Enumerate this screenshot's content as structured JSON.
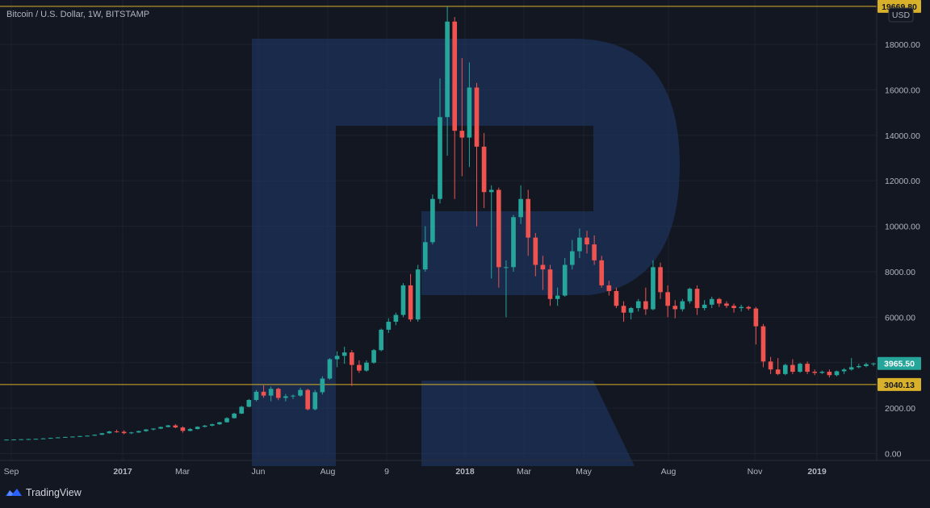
{
  "title": "Bitcoin / U.S. Dollar, 1W, BITSTAMP",
  "currency": "USD",
  "brand": "TradingView",
  "colors": {
    "up": "#26a69a",
    "down": "#ef5350",
    "line": "#d9b02a",
    "bg": "#131722",
    "text": "#b2b5be"
  },
  "chart_data": {
    "type": "candlestick",
    "title": "Bitcoin / U.S. Dollar, 1W, BITSTAMP",
    "y_ticks": [
      0,
      2000,
      4000,
      6000,
      8000,
      10000,
      12000,
      14000,
      16000,
      18000
    ],
    "y_tick_labels": [
      "0.00",
      "2000.00",
      "4000.00",
      "6000.00",
      "8000.00",
      "10000.00",
      "12000.00",
      "14000.00",
      "16000.00",
      "18000.00"
    ],
    "x_tick_labels": [
      "Sep",
      "2017",
      "Mar",
      "Jun",
      "Aug",
      "9",
      "2018",
      "Mar",
      "May",
      "Aug",
      "Nov",
      "2019"
    ],
    "ylim": [
      -300,
      19950
    ],
    "horizontal_levels": [
      {
        "value": 19669.8,
        "label": "19669.80"
      },
      {
        "value": 3040.13,
        "label": "3040.13"
      }
    ],
    "last_price": {
      "value": 3965.5,
      "label": "3965.50"
    },
    "grid": true,
    "candles": [
      [
        610,
        620,
        600,
        615
      ],
      [
        615,
        630,
        605,
        622
      ],
      [
        622,
        640,
        615,
        632
      ],
      [
        632,
        650,
        625,
        640
      ],
      [
        640,
        660,
        630,
        650
      ],
      [
        650,
        680,
        640,
        668
      ],
      [
        668,
        700,
        655,
        690
      ],
      [
        690,
        720,
        680,
        712
      ],
      [
        712,
        740,
        700,
        733
      ],
      [
        733,
        760,
        720,
        748
      ],
      [
        748,
        780,
        735,
        770
      ],
      [
        770,
        800,
        755,
        790
      ],
      [
        790,
        840,
        780,
        830
      ],
      [
        830,
        910,
        815,
        895
      ],
      [
        895,
        1000,
        880,
        975
      ],
      [
        975,
        1050,
        920,
        960
      ],
      [
        960,
        1030,
        850,
        900
      ],
      [
        900,
        960,
        860,
        930
      ],
      [
        930,
        1010,
        910,
        990
      ],
      [
        990,
        1080,
        960,
        1060
      ],
      [
        1060,
        1120,
        1020,
        1100
      ],
      [
        1100,
        1190,
        1080,
        1170
      ],
      [
        1170,
        1260,
        1150,
        1240
      ],
      [
        1240,
        1300,
        1120,
        1150
      ],
      [
        1150,
        1200,
        920,
        1000
      ],
      [
        1000,
        1120,
        980,
        1080
      ],
      [
        1080,
        1200,
        1060,
        1180
      ],
      [
        1180,
        1260,
        1150,
        1230
      ],
      [
        1230,
        1320,
        1200,
        1290
      ],
      [
        1290,
        1400,
        1260,
        1380
      ],
      [
        1380,
        1600,
        1360,
        1560
      ],
      [
        1560,
        1800,
        1540,
        1760
      ],
      [
        1760,
        2100,
        1740,
        2060
      ],
      [
        2060,
        2400,
        2040,
        2360
      ],
      [
        2360,
        2800,
        2300,
        2720
      ],
      [
        2720,
        3000,
        2450,
        2550
      ],
      [
        2550,
        2950,
        2300,
        2850
      ],
      [
        2850,
        2900,
        2350,
        2450
      ],
      [
        2450,
        2620,
        2300,
        2520
      ],
      [
        2520,
        2600,
        2400,
        2550
      ],
      [
        2550,
        2900,
        2500,
        2800
      ],
      [
        2800,
        2850,
        1900,
        1950
      ],
      [
        1950,
        2800,
        1900,
        2700
      ],
      [
        2700,
        3400,
        2600,
        3300
      ],
      [
        3300,
        4200,
        3250,
        4150
      ],
      [
        4150,
        4500,
        3800,
        4300
      ],
      [
        4300,
        4700,
        3950,
        4450
      ],
      [
        4450,
        4550,
        2980,
        3900
      ],
      [
        3900,
        4100,
        3550,
        3650
      ],
      [
        3650,
        4100,
        3600,
        4000
      ],
      [
        4000,
        4600,
        3950,
        4550
      ],
      [
        4550,
        5500,
        4500,
        5450
      ],
      [
        5450,
        5950,
        5300,
        5800
      ],
      [
        5800,
        6200,
        5650,
        6100
      ],
      [
        6100,
        7500,
        6000,
        7400
      ],
      [
        7400,
        7900,
        5800,
        5900
      ],
      [
        5900,
        8300,
        5800,
        8100
      ],
      [
        8100,
        10000,
        8000,
        9300
      ],
      [
        9300,
        11400,
        9200,
        11200
      ],
      [
        11200,
        16500,
        11000,
        14800
      ],
      [
        14800,
        19669.8,
        13100,
        19000
      ],
      [
        19000,
        19200,
        11200,
        14200
      ],
      [
        14200,
        17400,
        12200,
        13900
      ],
      [
        13900,
        17200,
        12600,
        16100
      ],
      [
        16100,
        16300,
        10000,
        13500
      ],
      [
        13500,
        14100,
        10800,
        11500
      ],
      [
        11500,
        11800,
        7700,
        11600
      ],
      [
        11600,
        11700,
        7300,
        8200
      ],
      [
        8200,
        8500,
        6000,
        8200
      ],
      [
        8200,
        10500,
        8000,
        10400
      ],
      [
        10400,
        11800,
        10100,
        11200
      ],
      [
        11200,
        11600,
        8700,
        9500
      ],
      [
        9500,
        9700,
        7800,
        8300
      ],
      [
        8300,
        8700,
        7200,
        8100
      ],
      [
        8100,
        8300,
        6500,
        6800
      ],
      [
        6800,
        7300,
        6500,
        6950
      ],
      [
        6950,
        8600,
        6900,
        8300
      ],
      [
        8300,
        9400,
        8100,
        8900
      ],
      [
        8900,
        9900,
        8600,
        9500
      ],
      [
        9500,
        9800,
        8800,
        9200
      ],
      [
        9200,
        9600,
        8300,
        8500
      ],
      [
        8500,
        8700,
        7300,
        7400
      ],
      [
        7400,
        7600,
        6950,
        7150
      ],
      [
        7150,
        7300,
        6400,
        6500
      ],
      [
        6500,
        6700,
        5800,
        6200
      ],
      [
        6200,
        6450,
        5900,
        6400
      ],
      [
        6400,
        6800,
        6250,
        6700
      ],
      [
        6700,
        7300,
        6100,
        6350
      ],
      [
        6350,
        8500,
        6300,
        8200
      ],
      [
        8200,
        8400,
        6800,
        7100
      ],
      [
        7100,
        7400,
        6000,
        6500
      ],
      [
        6500,
        6750,
        5950,
        6350
      ],
      [
        6350,
        6800,
        6250,
        6700
      ],
      [
        6700,
        7300,
        6600,
        7250
      ],
      [
        7250,
        7400,
        6100,
        6400
      ],
      [
        6400,
        6750,
        6300,
        6550
      ],
      [
        6550,
        6900,
        6400,
        6800
      ],
      [
        6800,
        6850,
        6450,
        6600
      ],
      [
        6600,
        6700,
        6400,
        6500
      ],
      [
        6500,
        6600,
        6200,
        6400
      ],
      [
        6400,
        6550,
        6250,
        6450
      ],
      [
        6450,
        6500,
        6300,
        6380
      ],
      [
        6380,
        6450,
        4800,
        5600
      ],
      [
        5600,
        5700,
        3800,
        4050
      ],
      [
        4050,
        4250,
        3500,
        3700
      ],
      [
        3700,
        4200,
        3450,
        3500
      ],
      [
        3500,
        3950,
        3450,
        3900
      ],
      [
        3900,
        4150,
        3500,
        3600
      ],
      [
        3600,
        4000,
        3550,
        3950
      ],
      [
        3950,
        4050,
        3500,
        3600
      ],
      [
        3600,
        3700,
        3450,
        3550
      ],
      [
        3550,
        3650,
        3500,
        3600
      ],
      [
        3600,
        3700,
        3350,
        3450
      ],
      [
        3450,
        3650,
        3400,
        3620
      ],
      [
        3620,
        3760,
        3500,
        3700
      ],
      [
        3700,
        4200,
        3650,
        3800
      ],
      [
        3800,
        3950,
        3750,
        3850
      ],
      [
        3850,
        4000,
        3800,
        3930
      ],
      [
        3930,
        4000,
        3850,
        3965.5
      ]
    ]
  }
}
